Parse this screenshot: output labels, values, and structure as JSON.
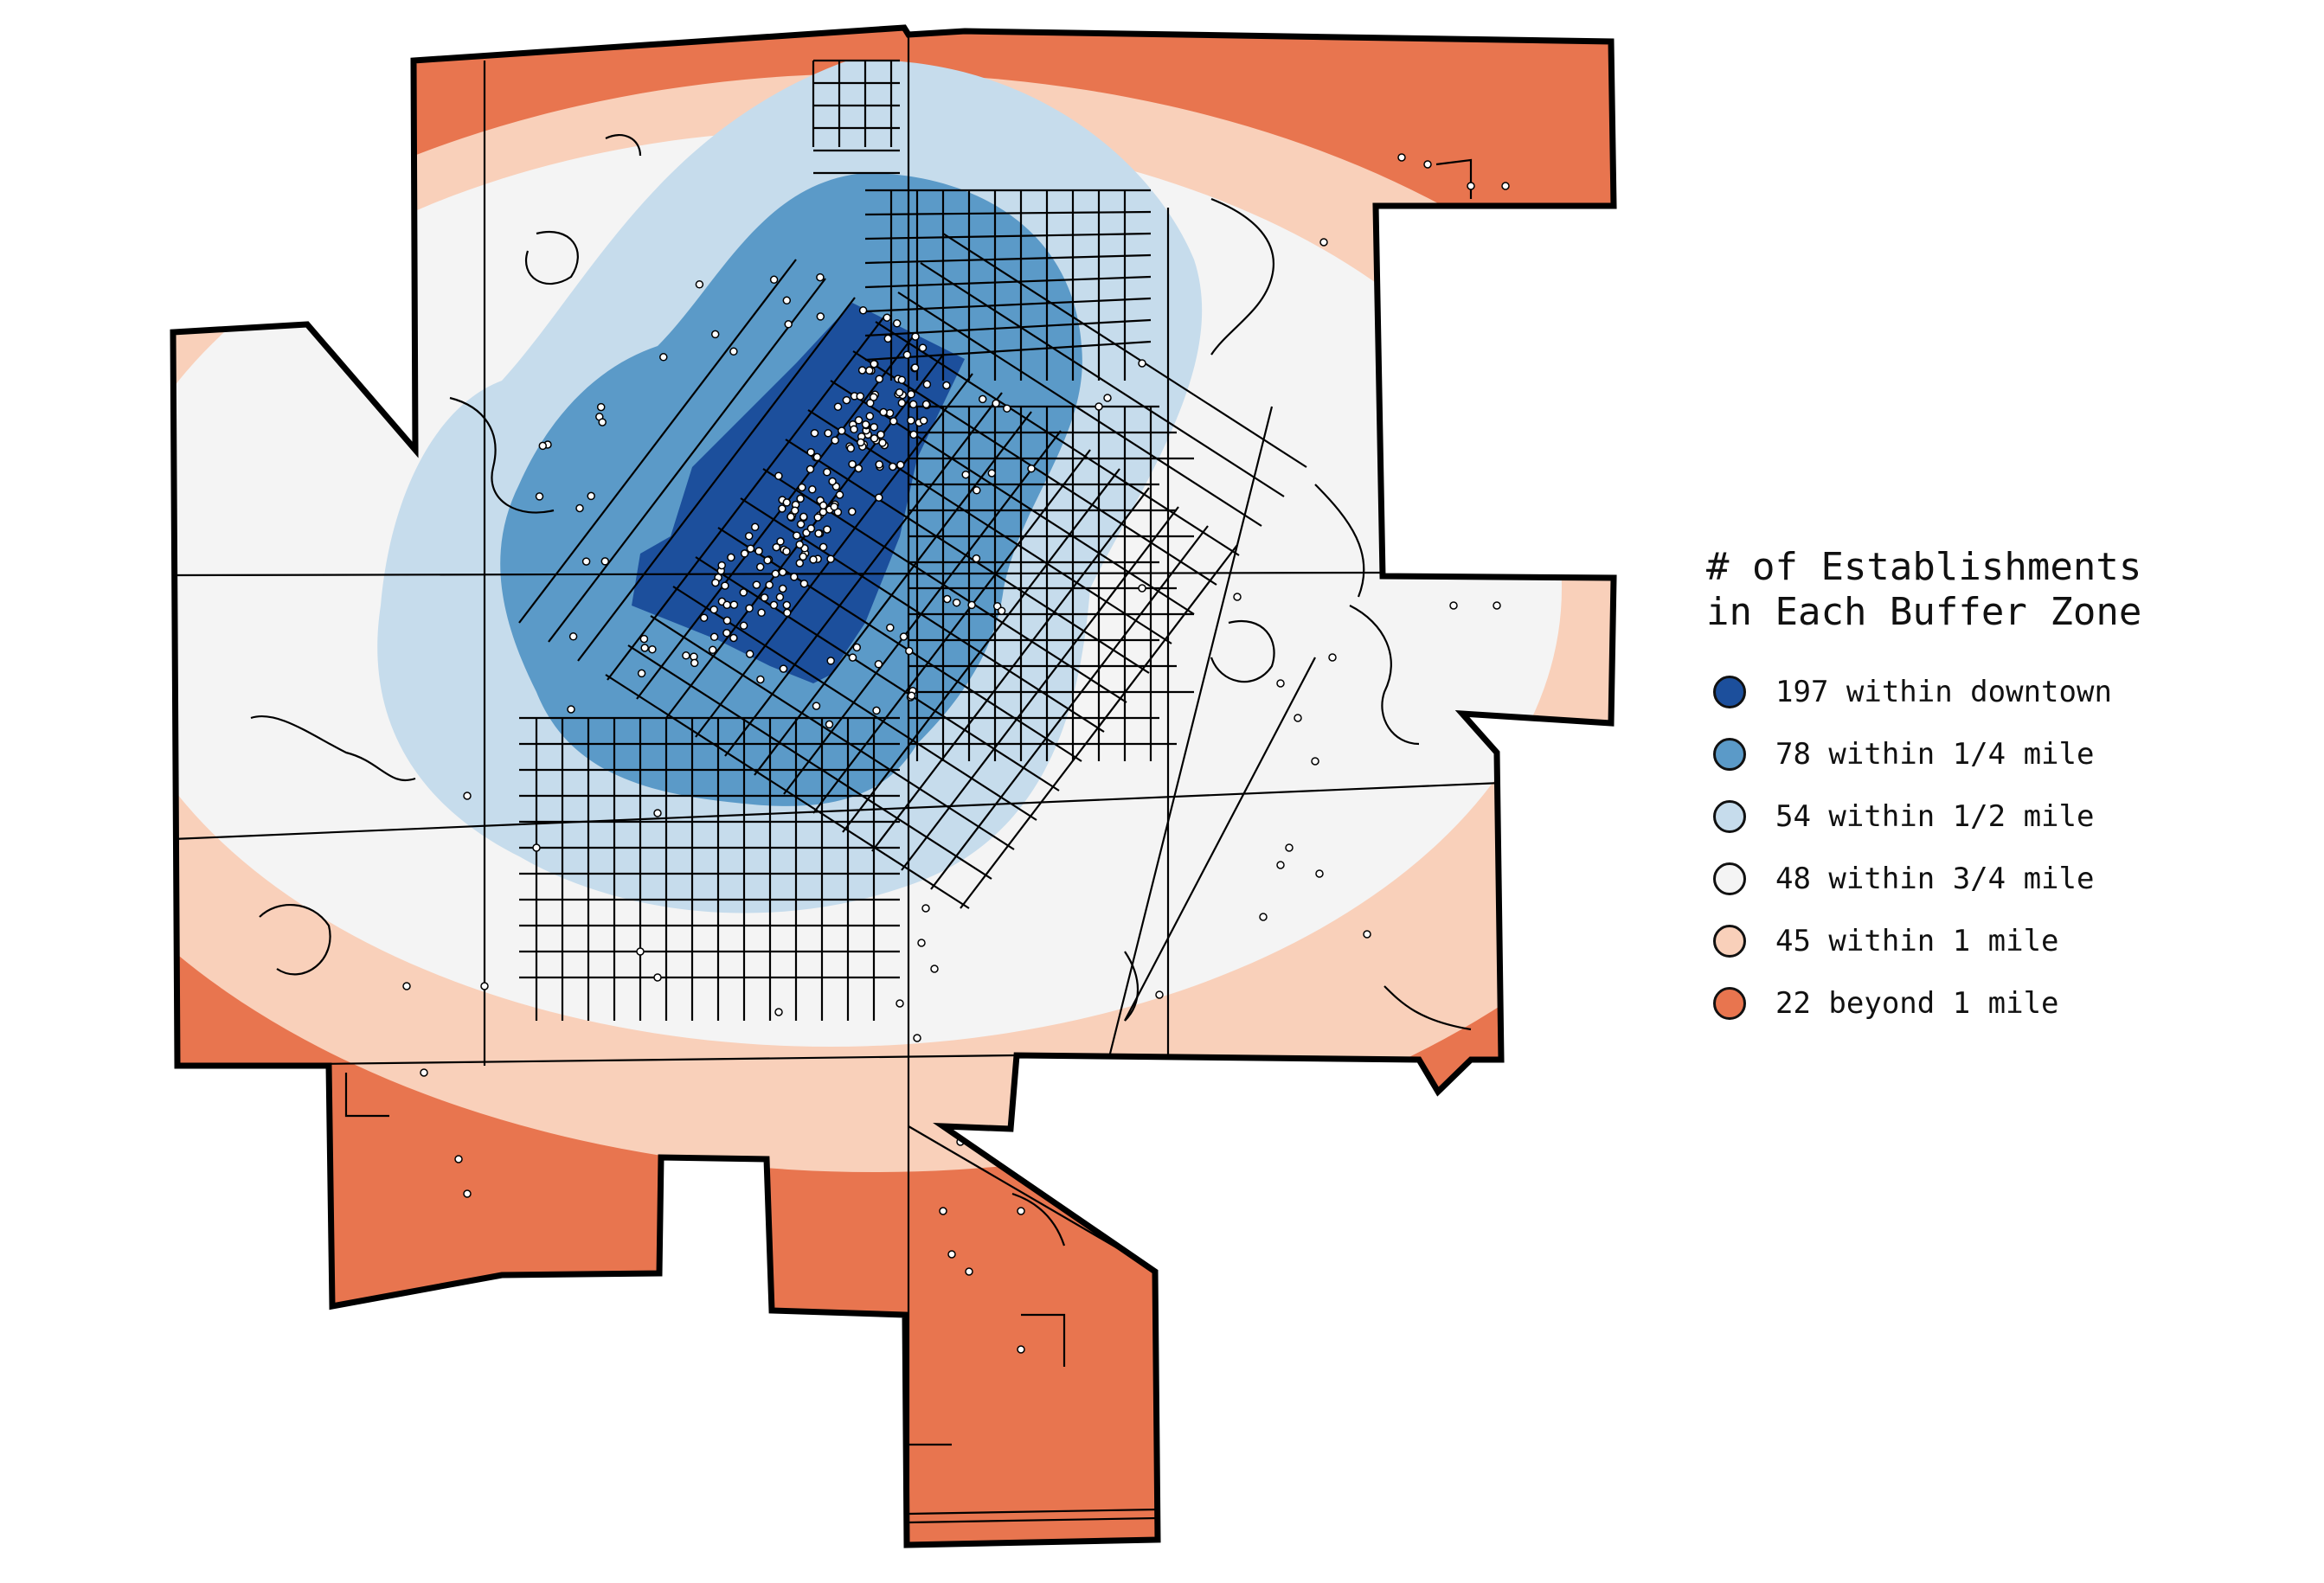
{
  "legend": {
    "title_line1": "# of Establishments",
    "title_line2": "in Each Buffer Zone",
    "items": [
      {
        "label": "197 within downtown",
        "count": 197,
        "zone": "downtown",
        "color": "#1c4f9c"
      },
      {
        "label": "78 within 1/4 mile",
        "count": 78,
        "zone": "1/4 mile",
        "color": "#5b9ac8"
      },
      {
        "label": "54 within 1/2 mile",
        "count": 54,
        "zone": "1/2 mile",
        "color": "#c6dcec"
      },
      {
        "label": "48 within 3/4 mile",
        "count": 48,
        "zone": "3/4 mile",
        "color": "#f4f4f4"
      },
      {
        "label": "45 within 1 mile",
        "count": 45,
        "zone": "1 mile",
        "color": "#f9d0ba"
      },
      {
        "label": "22 beyond 1 mile",
        "count": 22,
        "zone": "beyond 1 mile",
        "color": "#e8754f"
      }
    ]
  },
  "map": {
    "boundary_color": "#000000",
    "road_color": "#000000",
    "point_color": "#ffffff"
  }
}
